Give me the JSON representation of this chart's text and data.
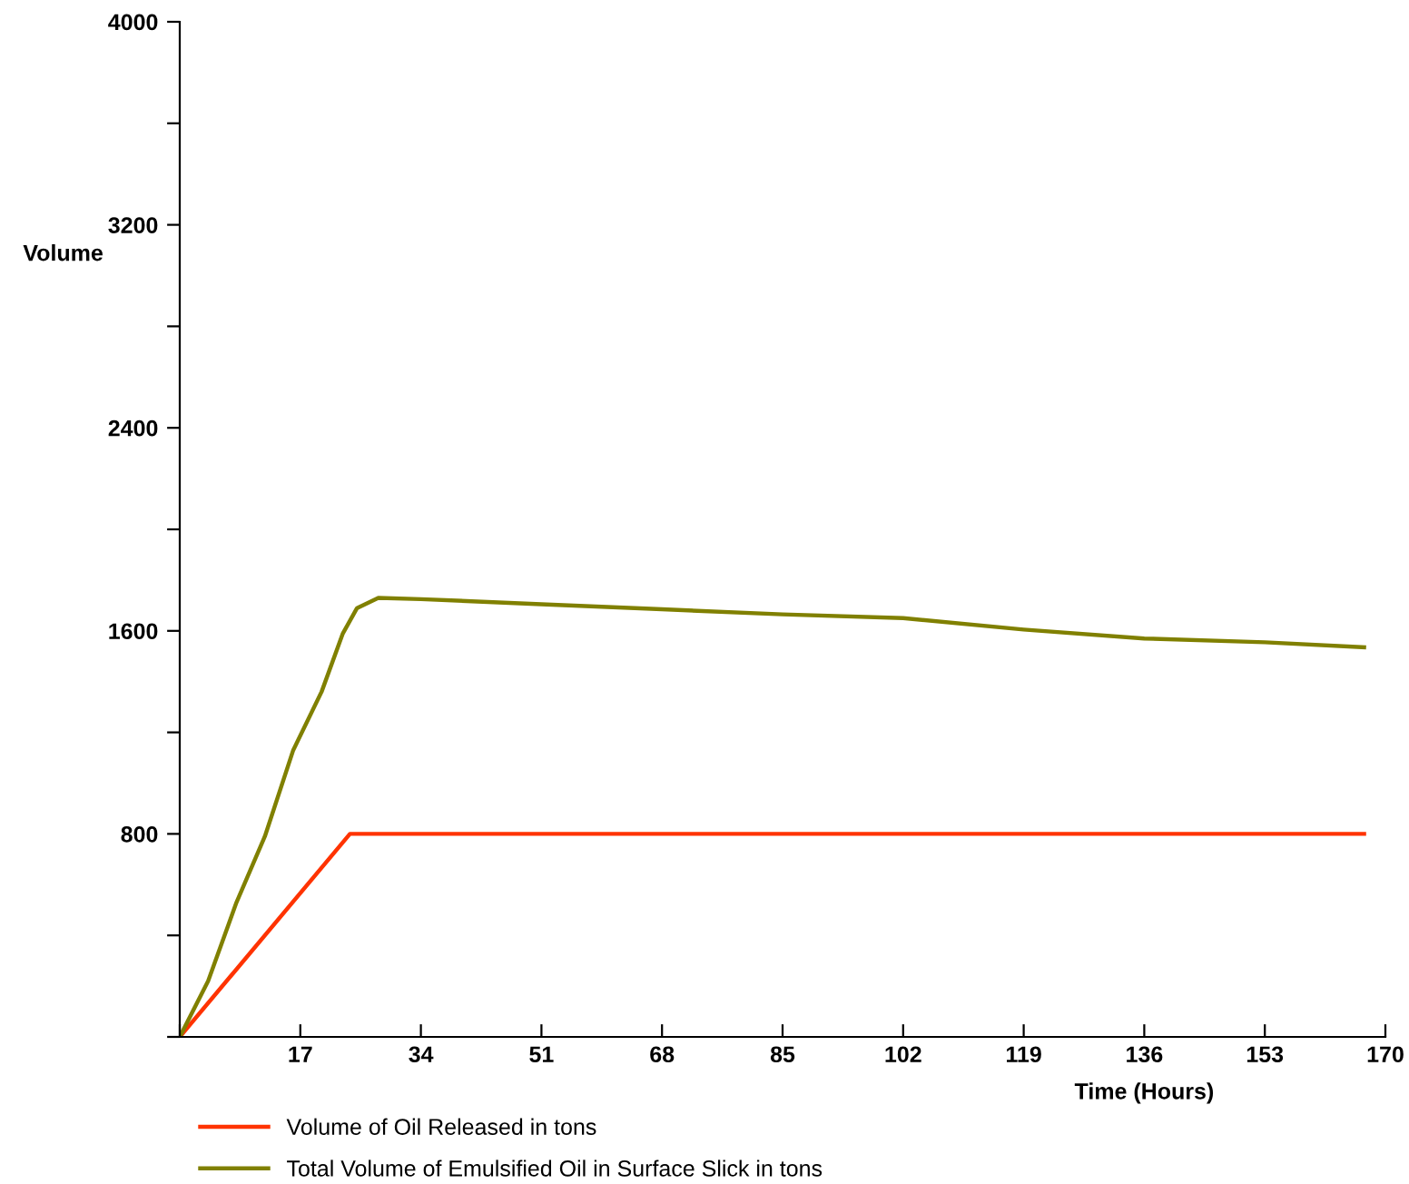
{
  "chart_data": {
    "type": "line",
    "xlabel": "Time (Hours)",
    "ylabel": "Volume",
    "xlim": [
      0,
      170
    ],
    "ylim": [
      0,
      4000
    ],
    "xticks": [
      {
        "value": 0,
        "label": null
      },
      17,
      34,
      51,
      68,
      85,
      102,
      119,
      136,
      153,
      170
    ],
    "yticks": [
      {
        "value": 0,
        "label": null
      },
      {
        "value": 400,
        "label": null
      },
      800,
      {
        "value": 1200,
        "label": null
      },
      1600,
      {
        "value": 2000,
        "label": null
      },
      2400,
      {
        "value": 2800,
        "label": null
      },
      3200,
      {
        "value": 3600,
        "label": null
      },
      4000
    ],
    "legend": "bottom",
    "grid": false,
    "marker": "none",
    "line_style": "solid",
    "series": [
      {
        "name": "Volume of Oil Released in tons",
        "color": "#ff3300",
        "x": [
          0,
          24,
          167
        ],
        "values": [
          0,
          800,
          800
        ]
      },
      {
        "name": "Total Volume of Emulsified Oil in Surface Slick in tons",
        "color": "#808000",
        "x": [
          0,
          4,
          8,
          12,
          16,
          20,
          23,
          25,
          28,
          34,
          51,
          68,
          85,
          102,
          119,
          136,
          153,
          167
        ],
        "values": [
          0,
          220,
          530,
          790,
          1130,
          1360,
          1590,
          1690,
          1730,
          1725,
          1705,
          1685,
          1665,
          1650,
          1605,
          1570,
          1555,
          1535
        ]
      }
    ]
  }
}
